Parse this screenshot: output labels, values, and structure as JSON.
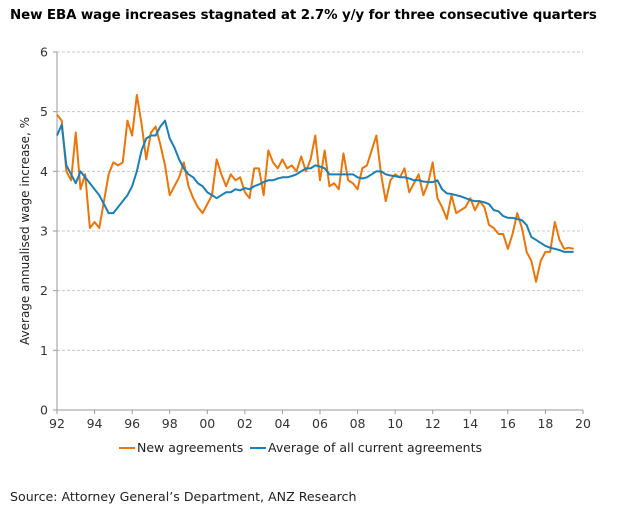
{
  "chart_data": {
    "type": "line",
    "title": "New EBA wage increases stagnated at 2.7% y/y for three consecutive quarters",
    "xlabel": "",
    "ylabel": "Average annualised wage increase, %",
    "xlim": [
      1992,
      2020
    ],
    "ylim": [
      0,
      6
    ],
    "yticks": [
      0,
      1,
      2,
      3,
      4,
      5,
      6
    ],
    "ytick_labels": [
      "0",
      "1",
      "2",
      "3",
      "4",
      "5",
      "6"
    ],
    "xticks": [
      1992,
      1994,
      1996,
      1998,
      2000,
      2002,
      2004,
      2006,
      2008,
      2010,
      2012,
      2014,
      2016,
      2018,
      2020
    ],
    "xtick_labels": [
      "92",
      "94",
      "96",
      "98",
      "00",
      "02",
      "04",
      "06",
      "08",
      "10",
      "12",
      "14",
      "16",
      "18",
      "20"
    ],
    "grid": "horizontal dashed",
    "legend_position": "bottom",
    "x_start": 1992.0,
    "x_step": 0.25,
    "series": [
      {
        "name": "New agreements",
        "color": "#E8760A",
        "values": [
          4.95,
          4.85,
          4.0,
          3.85,
          4.65,
          3.7,
          3.95,
          3.05,
          3.15,
          3.05,
          3.5,
          3.95,
          4.15,
          4.1,
          4.15,
          4.85,
          4.6,
          5.28,
          4.8,
          4.2,
          4.65,
          4.75,
          4.45,
          4.1,
          3.6,
          3.75,
          3.9,
          4.15,
          3.75,
          3.55,
          3.4,
          3.3,
          3.45,
          3.6,
          4.2,
          3.95,
          3.75,
          3.95,
          3.85,
          3.9,
          3.65,
          3.55,
          4.05,
          4.05,
          3.6,
          4.35,
          4.15,
          4.05,
          4.2,
          4.05,
          4.1,
          4.0,
          4.25,
          4.0,
          4.2,
          4.6,
          3.85,
          4.35,
          3.75,
          3.8,
          3.7,
          4.3,
          3.85,
          3.8,
          3.7,
          4.05,
          4.1,
          4.35,
          4.6,
          3.95,
          3.5,
          3.85,
          3.95,
          3.9,
          4.05,
          3.65,
          3.8,
          3.95,
          3.6,
          3.8,
          4.15,
          3.55,
          3.4,
          3.2,
          3.6,
          3.3,
          3.35,
          3.4,
          3.55,
          3.35,
          3.5,
          3.4,
          3.1,
          3.05,
          2.95,
          2.95,
          2.7,
          2.95,
          3.3,
          3.05,
          2.65,
          2.5,
          2.15,
          2.5,
          2.65,
          2.65,
          3.15,
          2.85,
          2.7,
          2.72,
          2.7
        ]
      },
      {
        "name": "Average of all current agreements",
        "color": "#1A7FB5",
        "values": [
          4.6,
          4.78,
          4.1,
          3.95,
          3.8,
          4.0,
          3.9,
          3.8,
          3.7,
          3.6,
          3.45,
          3.3,
          3.3,
          3.4,
          3.5,
          3.6,
          3.75,
          4.0,
          4.35,
          4.55,
          4.6,
          4.6,
          4.75,
          4.85,
          4.55,
          4.4,
          4.2,
          4.05,
          3.95,
          3.9,
          3.8,
          3.75,
          3.65,
          3.6,
          3.55,
          3.6,
          3.65,
          3.65,
          3.7,
          3.68,
          3.72,
          3.7,
          3.75,
          3.78,
          3.82,
          3.85,
          3.85,
          3.88,
          3.9,
          3.9,
          3.92,
          3.95,
          4.0,
          4.05,
          4.05,
          4.1,
          4.08,
          4.05,
          3.95,
          3.95,
          3.95,
          3.95,
          3.95,
          3.95,
          3.9,
          3.88,
          3.9,
          3.95,
          4.0,
          4.0,
          3.95,
          3.93,
          3.92,
          3.9,
          3.9,
          3.88,
          3.85,
          3.85,
          3.83,
          3.82,
          3.82,
          3.85,
          3.7,
          3.63,
          3.62,
          3.6,
          3.58,
          3.55,
          3.52,
          3.5,
          3.5,
          3.48,
          3.45,
          3.35,
          3.33,
          3.25,
          3.22,
          3.22,
          3.2,
          3.18,
          3.1,
          2.9,
          2.85,
          2.8,
          2.75,
          2.72,
          2.7,
          2.68,
          2.65,
          2.65,
          2.65
        ]
      }
    ]
  },
  "source": "Source: Attorney General’s Department, ANZ Research"
}
